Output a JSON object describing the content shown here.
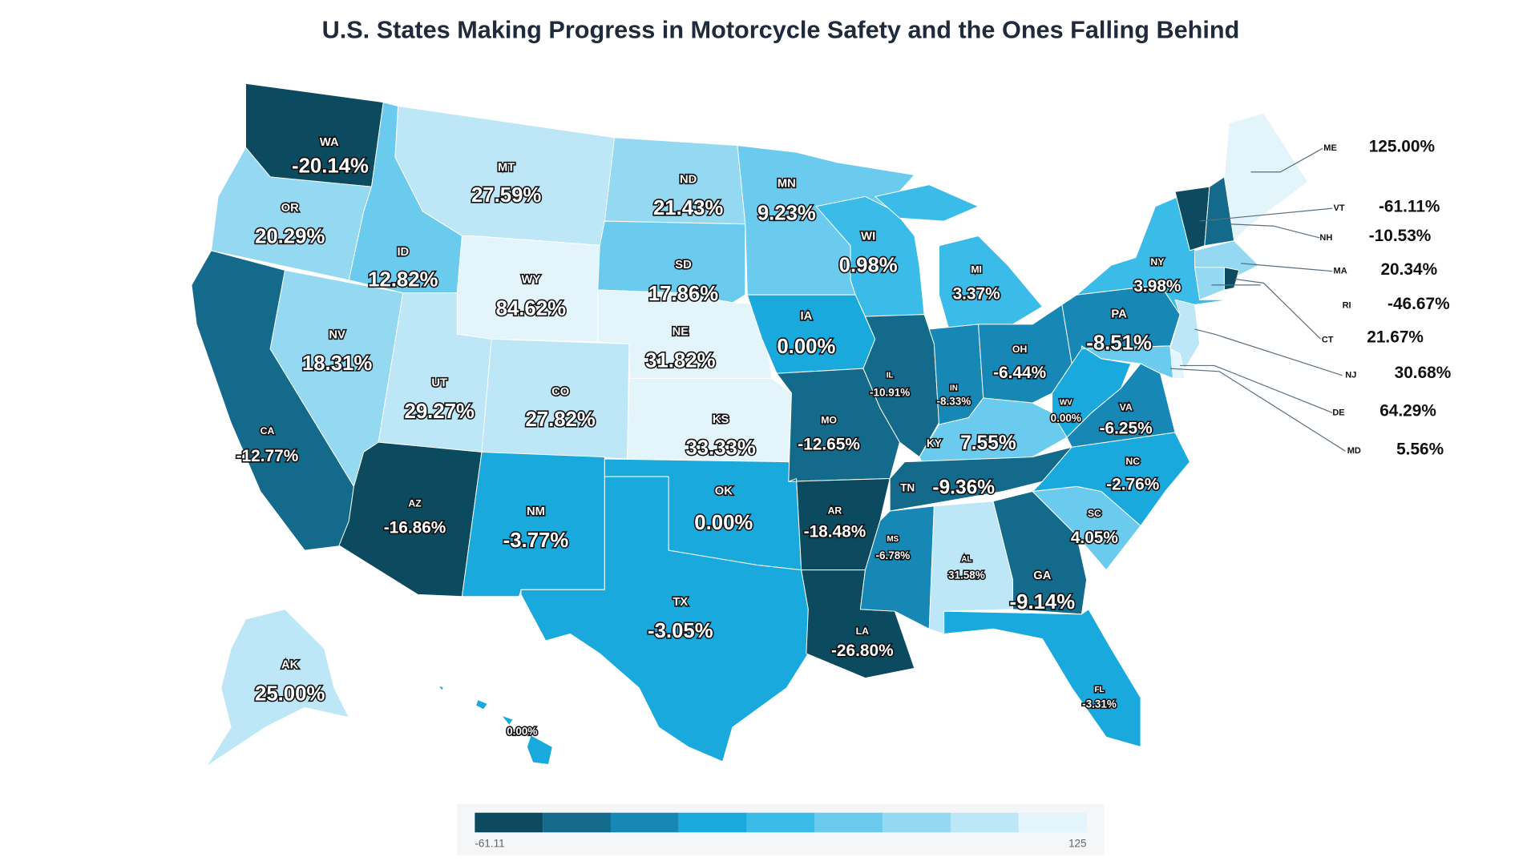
{
  "chart_data": {
    "type": "choropleth",
    "title": "U.S. States Making Progress in Motorcycle Safety and the Ones Falling Behind",
    "categories": [
      "WA",
      "OR",
      "CA",
      "NV",
      "ID",
      "MT",
      "WY",
      "UT",
      "AZ",
      "CO",
      "NM",
      "ND",
      "SD",
      "NE",
      "KS",
      "OK",
      "TX",
      "MN",
      "IA",
      "MO",
      "AR",
      "LA",
      "WI",
      "IL",
      "MI",
      "IN",
      "OH",
      "KY",
      "TN",
      "MS",
      "AL",
      "GA",
      "FL",
      "SC",
      "NC",
      "VA",
      "WV",
      "PA",
      "NY",
      "ME",
      "VT",
      "NH",
      "MA",
      "RI",
      "CT",
      "NJ",
      "DE",
      "MD",
      "AK",
      null
    ],
    "values": [
      -20.14,
      20.29,
      -12.77,
      18.31,
      12.82,
      27.59,
      84.62,
      29.27,
      -16.86,
      27.82,
      -3.77,
      21.43,
      17.86,
      31.82,
      33.33,
      0.0,
      -3.05,
      9.23,
      0.0,
      -12.65,
      -18.48,
      -26.8,
      0.98,
      -10.91,
      3.37,
      -8.33,
      -6.44,
      7.55,
      -9.36,
      -6.78,
      31.58,
      -9.14,
      -3.31,
      4.05,
      -2.76,
      -6.25,
      0.0,
      -8.51,
      3.98,
      125.0,
      -61.11,
      -10.53,
      20.34,
      -46.67,
      21.67,
      30.68,
      64.29,
      5.56,
      25.0,
      0.0
    ],
    "value_labels": [
      "-20.14%",
      "20.29%",
      "-12.77%",
      "18.31%",
      "12.82%",
      "27.59%",
      "84.62%",
      "29.27%",
      "-16.86%",
      "27.82%",
      "-3.77%",
      "21.43%",
      "17.86%",
      "31.82%",
      "33.33%",
      "0.00%",
      "-3.05%",
      "9.23%",
      "0.00%",
      "-12.65%",
      "-18.48%",
      "-26.80%",
      "0.98%",
      "-10.91%",
      "3.37%",
      "-8.33%",
      "-6.44%",
      "7.55%",
      "-9.36%",
      "-6.78%",
      "31.58%",
      "-9.14%",
      "-3.31%",
      "4.05%",
      "-2.76%",
      "-6.25%",
      "0.00%",
      "-8.51%",
      "3.98%",
      "125.00%",
      "-61.11%",
      "-10.53%",
      "20.34%",
      "-46.67%",
      "21.67%",
      "30.68%",
      "64.29%",
      "5.56%",
      "25.00%",
      "0.00%"
    ],
    "colors": [
      "#0c4a5f",
      "#136a8a",
      "#1787b5",
      "#1aa9dd",
      "#3bbbe8",
      "#6bcbee",
      "#95d8f2",
      "#bde6f6",
      "#e3f4fb"
    ],
    "color_range": [
      -61.11,
      125
    ]
  }
}
